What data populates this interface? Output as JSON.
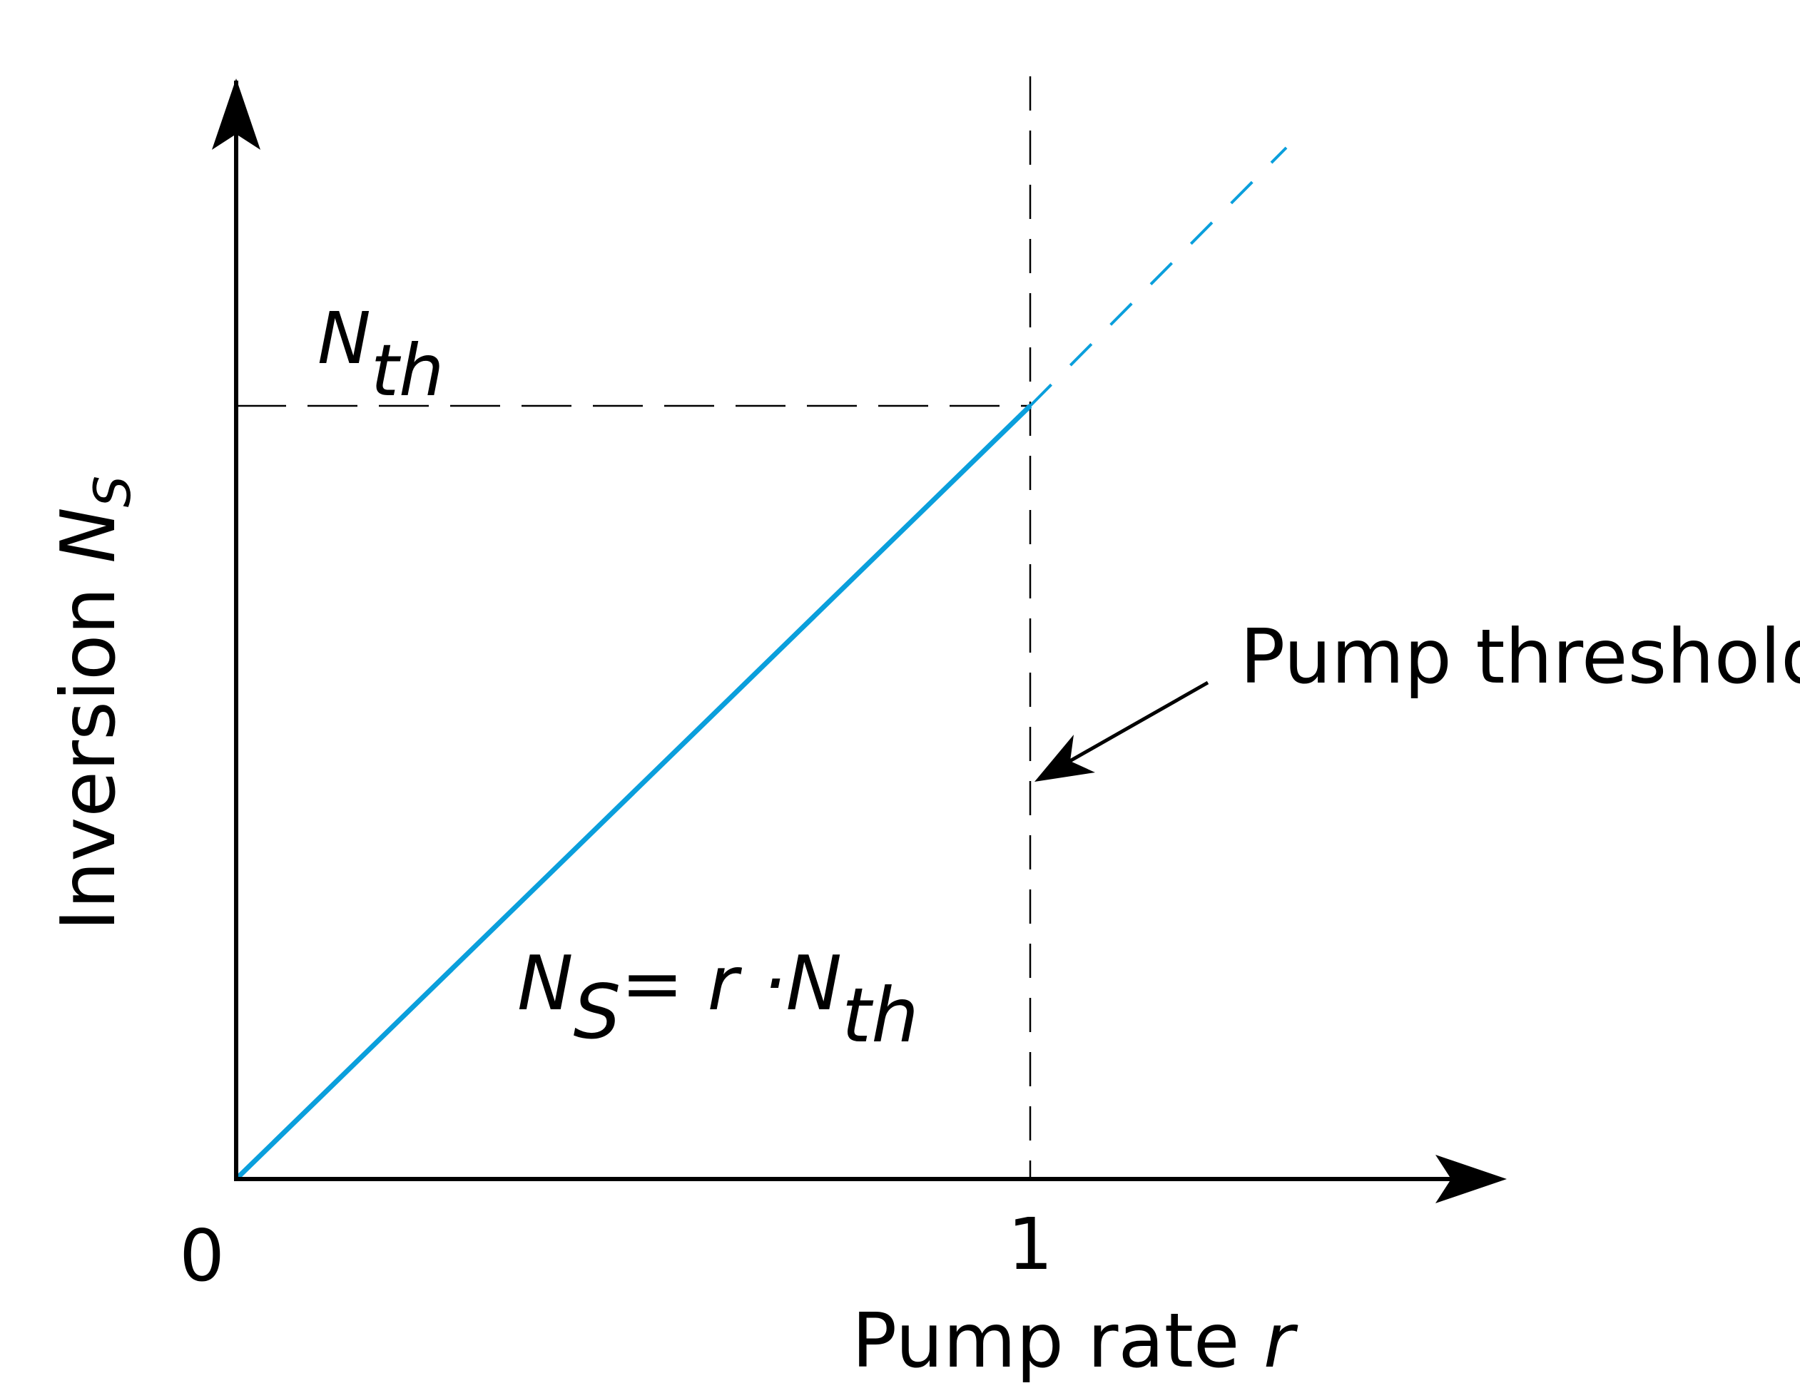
{
  "y_axis": {
    "label": "Inversion",
    "symbol": "N",
    "subscript": "S"
  },
  "x_axis": {
    "label": "Pump rate",
    "symbol": "r",
    "ticks": [
      "0",
      "1"
    ]
  },
  "threshold_level": {
    "symbol": "N",
    "subscript": "th"
  },
  "annotation": "Pump threshold",
  "equation": {
    "lhs": "N",
    "lhs_subscript": "S",
    "operator": "= r ·",
    "rhs": "N",
    "rhs_subscript": "th"
  }
}
